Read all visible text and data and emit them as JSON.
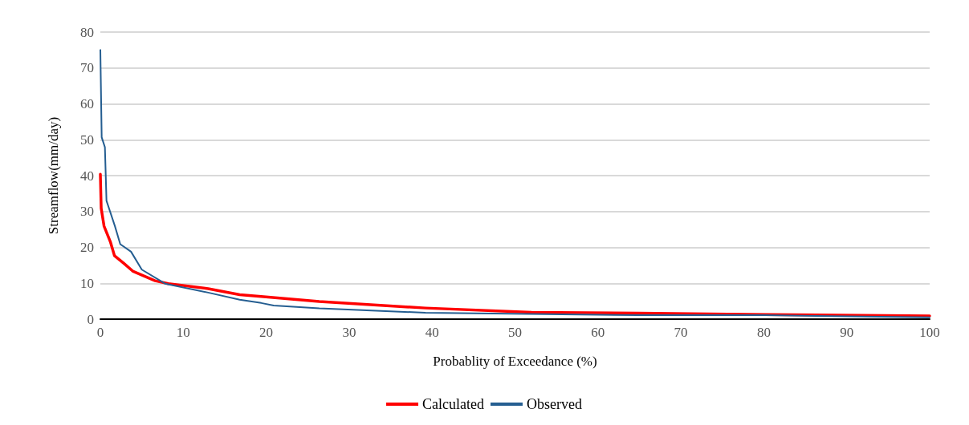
{
  "chart_data": {
    "type": "line",
    "xlabel": "Probablity of Exceedance (%)",
    "ylabel": "Streamflow(mm/day)",
    "xlim": [
      0,
      100
    ],
    "ylim": [
      0,
      80
    ],
    "xticks": [
      0,
      10,
      20,
      30,
      40,
      50,
      60,
      70,
      80,
      90,
      100
    ],
    "yticks": [
      0,
      10,
      20,
      30,
      40,
      50,
      60,
      70,
      80
    ],
    "grid": "y",
    "legend": "bottom",
    "marker": "none",
    "line_style": "solid",
    "series": [
      {
        "name": "Calculated",
        "color": "#ff0000",
        "x": [
          0,
          0.1,
          0.45,
          1.2,
          1.7,
          2.8,
          3.9,
          6.6,
          8.2,
          13,
          16.8,
          19.4,
          26.4,
          39.2,
          52,
          64.8,
          80,
          100
        ],
        "values": [
          40.4,
          30.9,
          25.9,
          21.6,
          17.7,
          15.6,
          13.4,
          10.7,
          9.9,
          8.5,
          6.8,
          6.3,
          4.9,
          3.1,
          1.9,
          1.7,
          1.3,
          0.9
        ]
      },
      {
        "name": "Observed",
        "color": "#255e91",
        "x": [
          0,
          0.16,
          0.55,
          0.74,
          1.76,
          2.4,
          3.7,
          5,
          7.8,
          13,
          16.8,
          19.4,
          20.9,
          26.4,
          39.2,
          64.8,
          80,
          100
        ],
        "values": [
          75,
          50.7,
          47.9,
          33,
          25.9,
          20.9,
          18.8,
          13.8,
          9.9,
          7.4,
          5.4,
          4.5,
          3.8,
          3,
          1.8,
          1.1,
          1.1,
          0.5
        ]
      }
    ]
  }
}
